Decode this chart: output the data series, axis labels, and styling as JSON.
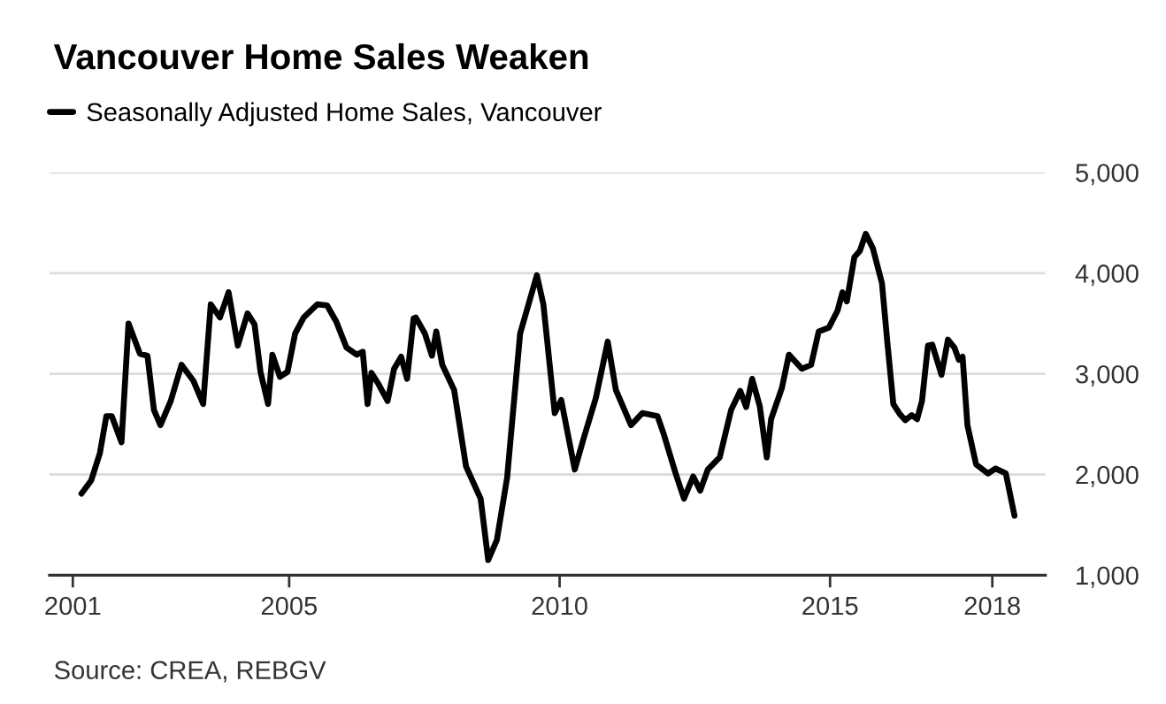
{
  "chart_data": {
    "type": "line",
    "title": "Vancouver Home Sales Weaken",
    "annotations": [
      "Source: CREA, REBGV"
    ],
    "series": [
      {
        "name": "Seasonally Adjusted Home Sales, Vancouver",
        "color": "#000000",
        "x": [
          2001.16,
          2001.34,
          2001.5,
          2001.62,
          2001.72,
          2001.9,
          2002.03,
          2002.24,
          2002.38,
          2002.5,
          2002.62,
          2002.81,
          2003.01,
          2003.23,
          2003.41,
          2003.55,
          2003.72,
          2003.88,
          2004.05,
          2004.23,
          2004.36,
          2004.47,
          2004.61,
          2004.69,
          2004.83,
          2004.97,
          2005.11,
          2005.27,
          2005.52,
          2005.7,
          2005.87,
          2006.06,
          2006.25,
          2006.36,
          2006.45,
          2006.52,
          2006.65,
          2006.82,
          2006.94,
          2007.07,
          2007.18,
          2007.3,
          2007.34,
          2007.51,
          2007.64,
          2007.72,
          2007.83,
          2008.05,
          2008.27,
          2008.54,
          2008.68,
          2008.84,
          2009.03,
          2009.27,
          2009.58,
          2009.7,
          2009.91,
          2010.03,
          2010.28,
          2010.44,
          2010.67,
          2010.89,
          2011.04,
          2011.32,
          2011.53,
          2011.81,
          2011.92,
          2012.14,
          2012.3,
          2012.47,
          2012.6,
          2012.74,
          2012.96,
          2013.17,
          2013.34,
          2013.45,
          2013.56,
          2013.7,
          2013.83,
          2013.91,
          2014.11,
          2014.24,
          2014.48,
          2014.65,
          2014.79,
          2014.98,
          2015.14,
          2015.23,
          2015.31,
          2015.45,
          2015.55,
          2015.66,
          2015.79,
          2015.96,
          2016.06,
          2016.17,
          2016.29,
          2016.39,
          2016.51,
          2016.61,
          2016.7,
          2016.81,
          2016.89,
          2017.06,
          2017.18,
          2017.3,
          2017.38,
          2017.45,
          2017.54,
          2017.7,
          2017.92,
          2018.06,
          2018.25,
          2018.41
        ],
        "values": [
          1810,
          1940,
          2210,
          2580,
          2580,
          2320,
          3500,
          3200,
          3180,
          2640,
          2490,
          2730,
          3090,
          2930,
          2700,
          3690,
          3560,
          3810,
          3280,
          3600,
          3490,
          3020,
          2700,
          3190,
          2970,
          3020,
          3400,
          3560,
          3690,
          3680,
          3520,
          3260,
          3190,
          3220,
          2700,
          3010,
          2900,
          2730,
          3050,
          3170,
          2950,
          3550,
          3560,
          3400,
          3180,
          3420,
          3090,
          2840,
          2080,
          1760,
          1150,
          1350,
          1970,
          3400,
          3980,
          3690,
          2610,
          2740,
          2050,
          2350,
          2760,
          3320,
          2840,
          2490,
          2610,
          2580,
          2410,
          2020,
          1760,
          1980,
          1840,
          2050,
          2170,
          2640,
          2830,
          2670,
          2950,
          2680,
          2170,
          2550,
          2860,
          3190,
          3050,
          3090,
          3420,
          3460,
          3630,
          3810,
          3720,
          4160,
          4220,
          4390,
          4250,
          3900,
          3310,
          2700,
          2600,
          2540,
          2590,
          2550,
          2730,
          3280,
          3290,
          2990,
          3340,
          3260,
          3140,
          3170,
          2490,
          2100,
          2010,
          2060,
          2010,
          1590
        ]
      }
    ],
    "xlim": [
      2000.57,
      2018.98
    ],
    "xticks": [
      2001,
      2005,
      2010,
      2015,
      2018
    ],
    "ylim": [
      1000,
      5000
    ],
    "yticks": [
      {
        "value": 1000,
        "label": "1,000"
      },
      {
        "value": 2000,
        "label": "2,000"
      },
      {
        "value": 3000,
        "label": "3,000"
      },
      {
        "value": 4000,
        "label": "4,000"
      },
      {
        "value": 5000,
        "label": "5,000"
      }
    ],
    "grid": "y",
    "legend": "top left",
    "line_style": "solid",
    "marker": "none"
  }
}
